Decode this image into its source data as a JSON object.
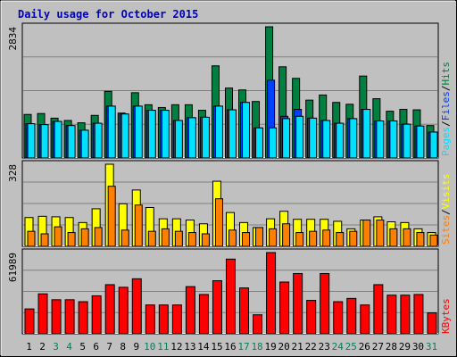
{
  "title": "Daily usage for October 2015",
  "colors": {
    "hits": "#008040",
    "files": "#0040ff",
    "pages": "#00e0ff",
    "visits": "#ffff00",
    "sites": "#ff8000",
    "kbytes": "#ff0000",
    "background": "#c0c0c0",
    "title": "#0000c0",
    "weekend": "#00805c",
    "grid": "#808080"
  },
  "chart_data": [
    {
      "type": "bar",
      "panel": "hits-files-pages",
      "legend": [
        "Pages",
        "/",
        "Files",
        "/",
        "Hits"
      ],
      "ymax_label": "2834",
      "ylim": [
        0,
        2834
      ],
      "categories": [
        "1",
        "2",
        "3",
        "4",
        "5",
        "6",
        "7",
        "8",
        "9",
        "10",
        "11",
        "12",
        "13",
        "14",
        "15",
        "16",
        "17",
        "18",
        "19",
        "20",
        "21",
        "22",
        "23",
        "24",
        "25",
        "26",
        "27",
        "28",
        "29",
        "30",
        "31"
      ],
      "series": [
        {
          "name": "Hits",
          "values": [
            940,
            960,
            860,
            810,
            760,
            920,
            1440,
            970,
            1410,
            1150,
            1090,
            1150,
            1150,
            1030,
            1990,
            1510,
            1470,
            1220,
            2834,
            1970,
            1720,
            1250,
            1360,
            1200,
            1160,
            1770,
            1280,
            1010,
            1050,
            1040,
            700
          ]
        },
        {
          "name": "Files",
          "values": [
            740,
            720,
            790,
            700,
            600,
            750,
            1120,
            950,
            1120,
            1030,
            1030,
            810,
            870,
            880,
            1120,
            1040,
            1200,
            650,
            1680,
            900,
            1050,
            860,
            810,
            750,
            850,
            1050,
            800,
            800,
            730,
            690,
            560
          ]
        },
        {
          "name": "Pages",
          "values": [
            740,
            720,
            790,
            700,
            600,
            750,
            1120,
            950,
            1120,
            1030,
            1030,
            810,
            870,
            880,
            1120,
            1040,
            1200,
            650,
            650,
            850,
            900,
            860,
            810,
            750,
            850,
            1050,
            800,
            800,
            730,
            690,
            560
          ]
        }
      ]
    },
    {
      "type": "bar",
      "panel": "visits-sites",
      "legend": [
        "Sites",
        "/",
        "Visits"
      ],
      "ymax_label": "328",
      "ylim": [
        0,
        328
      ],
      "categories": [
        "1",
        "2",
        "3",
        "4",
        "5",
        "6",
        "7",
        "8",
        "9",
        "10",
        "11",
        "12",
        "13",
        "14",
        "15",
        "16",
        "17",
        "18",
        "19",
        "20",
        "21",
        "22",
        "23",
        "24",
        "25",
        "26",
        "27",
        "28",
        "29",
        "30",
        "31"
      ],
      "series": [
        {
          "name": "Visits",
          "values": [
            115,
            120,
            118,
            115,
            95,
            150,
            328,
            170,
            225,
            155,
            110,
            110,
            105,
            90,
            260,
            135,
            95,
            75,
            110,
            140,
            108,
            108,
            108,
            100,
            70,
            105,
            118,
            98,
            95,
            70,
            55
          ]
        },
        {
          "name": "Sites",
          "values": [
            60,
            50,
            78,
            55,
            70,
            75,
            240,
            65,
            165,
            60,
            70,
            60,
            55,
            50,
            190,
            65,
            55,
            75,
            70,
            90,
            55,
            60,
            65,
            55,
            60,
            105,
            105,
            70,
            70,
            55,
            45
          ]
        }
      ]
    },
    {
      "type": "bar",
      "panel": "kbytes",
      "legend": [
        "KBytes"
      ],
      "ymax_label": "61989",
      "ylim": [
        0,
        61989
      ],
      "categories": [
        "1",
        "2",
        "3",
        "4",
        "5",
        "6",
        "7",
        "8",
        "9",
        "10",
        "11",
        "12",
        "13",
        "14",
        "15",
        "16",
        "17",
        "18",
        "19",
        "20",
        "21",
        "22",
        "23",
        "24",
        "25",
        "26",
        "27",
        "28",
        "29",
        "30",
        "31"
      ],
      "series": [
        {
          "name": "KBytes",
          "values": [
            19000,
            30500,
            26000,
            26000,
            24500,
            29000,
            37500,
            35500,
            42000,
            22000,
            22000,
            22000,
            36000,
            30000,
            40500,
            57000,
            35000,
            14500,
            61989,
            39500,
            46000,
            25500,
            46000,
            24500,
            27000,
            22000,
            37500,
            29500,
            29500,
            30000,
            16000
          ]
        }
      ]
    }
  ],
  "x_labels": [
    "1",
    "2",
    "3",
    "4",
    "5",
    "6",
    "7",
    "8",
    "9",
    "10",
    "11",
    "12",
    "13",
    "14",
    "15",
    "16",
    "17",
    "18",
    "19",
    "20",
    "21",
    "22",
    "23",
    "24",
    "25",
    "26",
    "27",
    "28",
    "29",
    "30",
    "31"
  ],
  "weekend_days": [
    "3",
    "4",
    "10",
    "11",
    "17",
    "18",
    "24",
    "25",
    "31"
  ]
}
